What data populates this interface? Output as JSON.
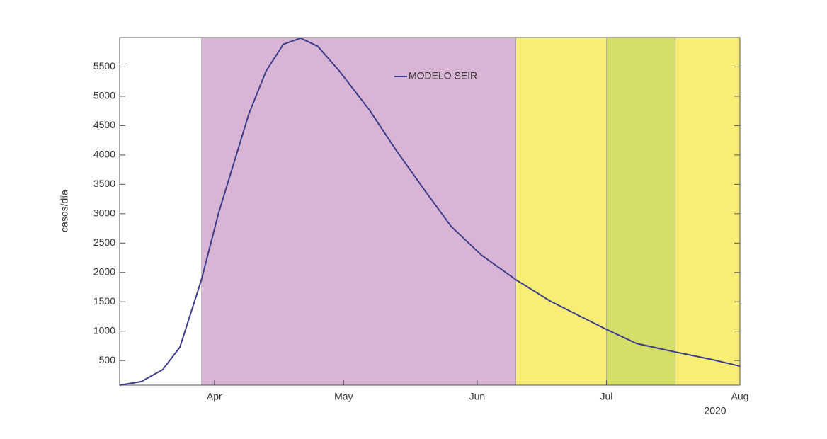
{
  "chart_data": {
    "type": "line",
    "y_label": "casos/día",
    "x_year_label": "2020",
    "xlim": [
      70,
      214
    ],
    "xticks": [
      {
        "value": 92,
        "label": "Apr"
      },
      {
        "value": 122,
        "label": "May"
      },
      {
        "value": 153,
        "label": "Jun"
      },
      {
        "value": 183,
        "label": "Jul"
      },
      {
        "value": 214,
        "label": "Aug"
      }
    ],
    "ylim": [
      80,
      6000
    ],
    "yticks": [
      500,
      1000,
      1500,
      2000,
      2500,
      3000,
      3500,
      4000,
      4500,
      5000,
      5500
    ],
    "regions": [
      {
        "x0": 89,
        "x1": 162,
        "color": "#d8b5d5"
      },
      {
        "x0": 162,
        "x1": 214,
        "color": "#f8ee76"
      },
      {
        "x0": 183,
        "x1": 199,
        "color": "#d5df68"
      }
    ],
    "x": [
      70,
      75,
      80,
      84,
      89,
      93,
      97,
      100,
      104,
      108,
      112,
      116,
      121,
      128,
      134,
      141,
      147,
      154,
      162,
      170,
      183,
      190,
      199,
      207,
      214
    ],
    "series": [
      {
        "name": "MODELO SEIR",
        "color": "#3d3d8c",
        "values": [
          80,
          140,
          345,
          730,
          1880,
          3020,
          3980,
          4700,
          5430,
          5885,
          5990,
          5850,
          5430,
          4765,
          4100,
          3380,
          2780,
          2295,
          1875,
          1510,
          1030,
          790,
          645,
          525,
          405
        ]
      }
    ]
  }
}
